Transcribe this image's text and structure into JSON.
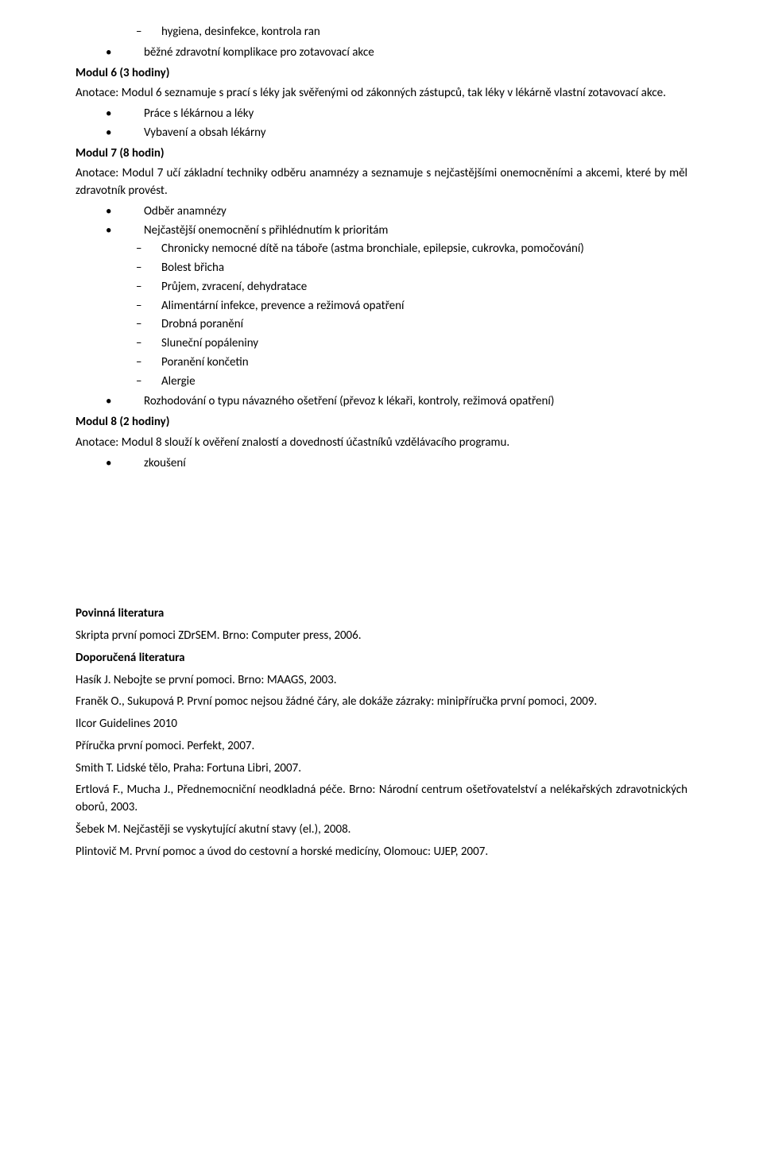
{
  "topDash": [
    "hygiena, desinfekce, kontrola ran"
  ],
  "topDot": [
    "běžné zdravotní komplikace pro zotavovací akce"
  ],
  "mod6": {
    "heading": "Modul 6 (3 hodiny)",
    "annotation": "Anotace: Modul 6 seznamuje s prací s léky  jak svěřenými od zákonných zástupců, tak léky v lékárně vlastní zotavovací akce.",
    "bullets": [
      "Práce s lékárnou a léky",
      "Vybavení a obsah lékárny"
    ]
  },
  "mod7": {
    "heading": "Modul 7 (8 hodin)",
    "annotation": "Anotace: Modul 7 učí základní techniky odběru anamnézy a seznamuje s nejčastějšími onemocněními a akcemi, které by měl zdravotník provést.",
    "bullets1": [
      "Odběr anamnézy",
      "Nejčastější onemocnění s přihlédnutím k prioritám"
    ],
    "dashes": [
      "Chronicky nemocné dítě na táboře (astma bronchiale, epilepsie, cukrovka, pomočování)",
      "Bolest břicha",
      "Průjem, zvracení, dehydratace",
      "Alimentární infekce, prevence a režimová opatření",
      "Drobná poranění",
      "Sluneční popáleniny",
      "Poranění končetin",
      "Alergie"
    ],
    "bullets2": [
      "Rozhodování o typu návazného ošetření (převoz k lékaři, kontroly, režimová opatření)"
    ]
  },
  "mod8": {
    "heading": "Modul 8 (2 hodiny)",
    "annotation": "Anotace: Modul 8 slouží k ověření znalostí a dovedností účastníků vzdělávacího programu.",
    "bullets": [
      "zkoušení"
    ]
  },
  "lit": {
    "heading1": "Povinná literatura",
    "item1": "Skripta první pomoci ZDrSEM. Brno: Computer press, 2006.",
    "heading2": "Doporučená literatura",
    "items2": [
      "Hasík J. Nebojte se první pomoci. Brno: MAAGS, 2003.",
      "Franěk O., Sukupová P. První pomoc nejsou žádné čáry, ale dokáže zázraky: minipříručka první pomoci, 2009.",
      "Ilcor Guidelines 2010",
      "Příručka první pomoci. Perfekt, 2007.",
      "Smith T. Lidské tělo, Praha: Fortuna Libri, 2007.",
      "Ertlová F., Mucha J., Přednemocniční neodkladná péče. Brno:  Národní centrum ošetřovatelství a nelékařských zdravotnických oborů, 2003.",
      "Šebek M. Nejčastěji se vyskytující akutní stavy (el.), 2008.",
      "Plintovič M. První pomoc a úvod do cestovní a horské medicíny, Olomouc: UJEP, 2007."
    ]
  }
}
